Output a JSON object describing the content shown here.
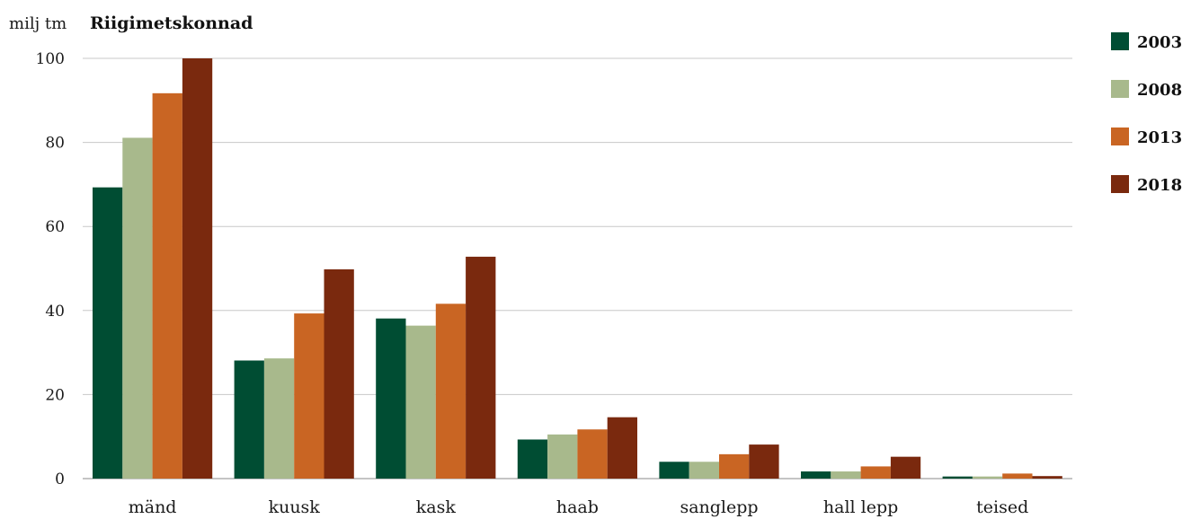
{
  "chart_data": {
    "type": "bar",
    "title": "Riigimetskonnad",
    "ylabel": "milj tm",
    "xlabel": "",
    "ylim": [
      0,
      100
    ],
    "yticks": [
      "0",
      "20",
      "40",
      "60",
      "80",
      "100"
    ],
    "grid": true,
    "legend_position": "right",
    "categories": [
      "mänd",
      "kuusk",
      "kask",
      "haab",
      "sanglepp",
      "hall lepp",
      "teised"
    ],
    "series": [
      {
        "name": "2003",
        "color": "#004d33",
        "values": [
          69.3,
          28.1,
          38.1,
          9.3,
          4.0,
          1.7,
          0.5
        ]
      },
      {
        "name": "2008",
        "color": "#a8b98c",
        "values": [
          81.1,
          28.6,
          36.4,
          10.5,
          4.0,
          1.7,
          0.5
        ]
      },
      {
        "name": "2013",
        "color": "#c96523",
        "values": [
          91.7,
          39.3,
          41.6,
          11.7,
          5.8,
          2.9,
          1.2
        ]
      },
      {
        "name": "2018",
        "color": "#7a290e",
        "values": [
          100.0,
          49.8,
          52.8,
          14.6,
          8.1,
          5.2,
          0.6
        ]
      }
    ]
  }
}
